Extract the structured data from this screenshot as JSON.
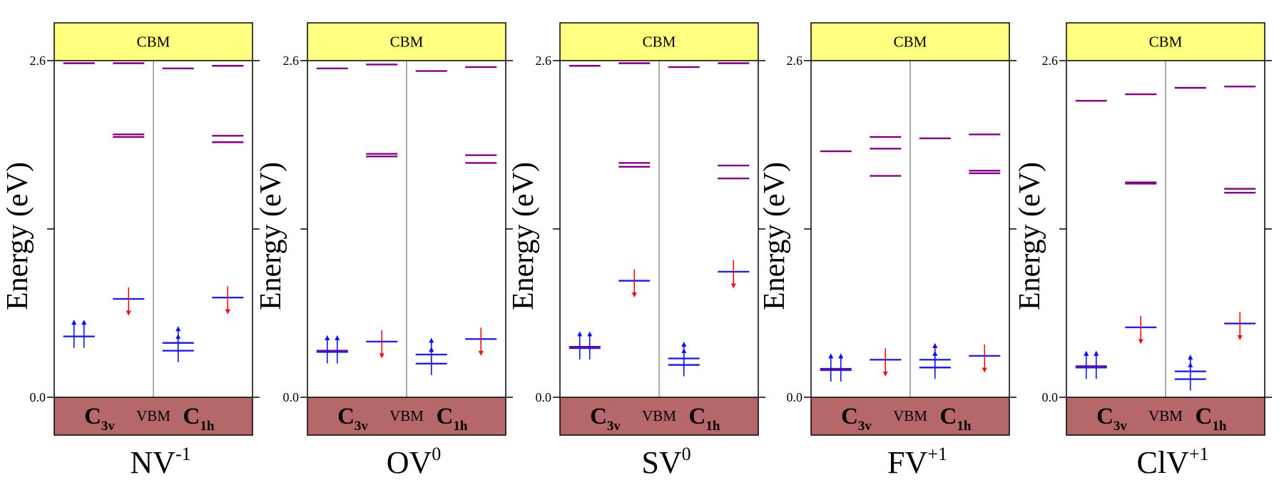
{
  "figure": {
    "cbm_label": "CBM",
    "vbm_label": "VBM",
    "y_axis_label": "Energy (eV)",
    "y_ticks": [
      {
        "value": 0.0,
        "label": "0.0"
      },
      {
        "value": 1.3,
        "label": ""
      },
      {
        "value": 2.6,
        "label": "2.6"
      }
    ],
    "ylim": [
      0,
      2.6
    ],
    "sym_left": {
      "main": "C",
      "sub": "3v"
    },
    "sym_right": {
      "main": "C",
      "sub": "1h"
    },
    "colors": {
      "cbm_fill": "#ffff80",
      "vbm_fill": "#b5676a",
      "empty_level": "#800080",
      "occupied_level": "#2222dd",
      "spin_up": "#1111ee",
      "spin_down": "#ee1111",
      "divider": "#888888",
      "frame": "#000000"
    }
  },
  "panels": [
    {
      "base": "NV",
      "sup": "-1",
      "c3v": {
        "up": [
          {
            "e": 0.47,
            "occ": 2
          },
          {
            "e": 2.58,
            "occ": 0
          }
        ],
        "down": [
          {
            "e": 0.76,
            "occ": 1
          },
          {
            "e": 2.01,
            "occ": 0
          },
          {
            "e": 2.03,
            "occ": 0
          },
          {
            "e": 2.58,
            "occ": 0
          }
        ]
      },
      "c1h": {
        "up": [
          {
            "e": 0.36,
            "occ": 1
          },
          {
            "e": 0.42,
            "occ": 1
          },
          {
            "e": 2.54,
            "occ": 0
          }
        ],
        "down": [
          {
            "e": 0.77,
            "occ": 1
          },
          {
            "e": 1.97,
            "occ": 0
          },
          {
            "e": 2.02,
            "occ": 0
          },
          {
            "e": 2.56,
            "occ": 0
          }
        ]
      }
    },
    {
      "base": "OV",
      "sup": "0",
      "c3v": {
        "up": [
          {
            "e": 0.35,
            "occ": 2
          },
          {
            "e": 0.36,
            "occ": 0
          },
          {
            "e": 2.54,
            "occ": 0
          }
        ],
        "down": [
          {
            "e": 0.43,
            "occ": 1
          },
          {
            "e": 1.86,
            "occ": 0
          },
          {
            "e": 1.88,
            "occ": 0
          },
          {
            "e": 2.57,
            "occ": 0
          }
        ]
      },
      "c1h": {
        "up": [
          {
            "e": 0.26,
            "occ": 1
          },
          {
            "e": 0.33,
            "occ": 1
          },
          {
            "e": 2.52,
            "occ": 0
          }
        ],
        "down": [
          {
            "e": 0.45,
            "occ": 1
          },
          {
            "e": 1.81,
            "occ": 0
          },
          {
            "e": 1.87,
            "occ": 0
          },
          {
            "e": 2.55,
            "occ": 0
          }
        ]
      }
    },
    {
      "base": "SV",
      "sup": "0",
      "c3v": {
        "up": [
          {
            "e": 0.38,
            "occ": 2
          },
          {
            "e": 0.39,
            "occ": 0
          },
          {
            "e": 2.56,
            "occ": 0
          }
        ],
        "down": [
          {
            "e": 0.9,
            "occ": 1
          },
          {
            "e": 1.78,
            "occ": 0
          },
          {
            "e": 1.81,
            "occ": 0
          },
          {
            "e": 2.58,
            "occ": 0
          }
        ]
      },
      "c1h": {
        "up": [
          {
            "e": 0.25,
            "occ": 1
          },
          {
            "e": 0.3,
            "occ": 1
          },
          {
            "e": 2.55,
            "occ": 0
          }
        ],
        "down": [
          {
            "e": 0.97,
            "occ": 1
          },
          {
            "e": 1.69,
            "occ": 0
          },
          {
            "e": 1.79,
            "occ": 0
          },
          {
            "e": 2.58,
            "occ": 0
          }
        ]
      }
    },
    {
      "base": "FV",
      "sup": "+1",
      "c3v": {
        "up": [
          {
            "e": 0.21,
            "occ": 2
          },
          {
            "e": 0.22,
            "occ": 0
          },
          {
            "e": 1.9,
            "occ": 0
          }
        ],
        "down": [
          {
            "e": 0.29,
            "occ": 1
          },
          {
            "e": 1.71,
            "occ": 0
          },
          {
            "e": 1.92,
            "occ": 0
          },
          {
            "e": 2.01,
            "occ": 0
          }
        ]
      },
      "c1h": {
        "up": [
          {
            "e": 0.23,
            "occ": 1
          },
          {
            "e": 0.29,
            "occ": 1
          },
          {
            "e": 2.0,
            "occ": 0
          }
        ],
        "down": [
          {
            "e": 0.32,
            "occ": 1
          },
          {
            "e": 1.73,
            "occ": 0
          },
          {
            "e": 1.75,
            "occ": 0
          },
          {
            "e": 2.03,
            "occ": 0
          }
        ]
      }
    },
    {
      "base": "ClV",
      "sup": "+1",
      "c3v": {
        "up": [
          {
            "e": 0.23,
            "occ": 2
          },
          {
            "e": 0.24,
            "occ": 0
          },
          {
            "e": 2.29,
            "occ": 0
          }
        ],
        "down": [
          {
            "e": 0.54,
            "occ": 1
          },
          {
            "e": 1.65,
            "occ": 0
          },
          {
            "e": 1.66,
            "occ": 0
          },
          {
            "e": 2.34,
            "occ": 0
          }
        ]
      },
      "c1h": {
        "up": [
          {
            "e": 0.14,
            "occ": 1
          },
          {
            "e": 0.2,
            "occ": 1
          },
          {
            "e": 2.39,
            "occ": 0
          }
        ],
        "down": [
          {
            "e": 0.57,
            "occ": 1
          },
          {
            "e": 1.58,
            "occ": 0
          },
          {
            "e": 1.61,
            "occ": 0
          },
          {
            "e": 2.4,
            "occ": 0
          }
        ]
      }
    }
  ]
}
